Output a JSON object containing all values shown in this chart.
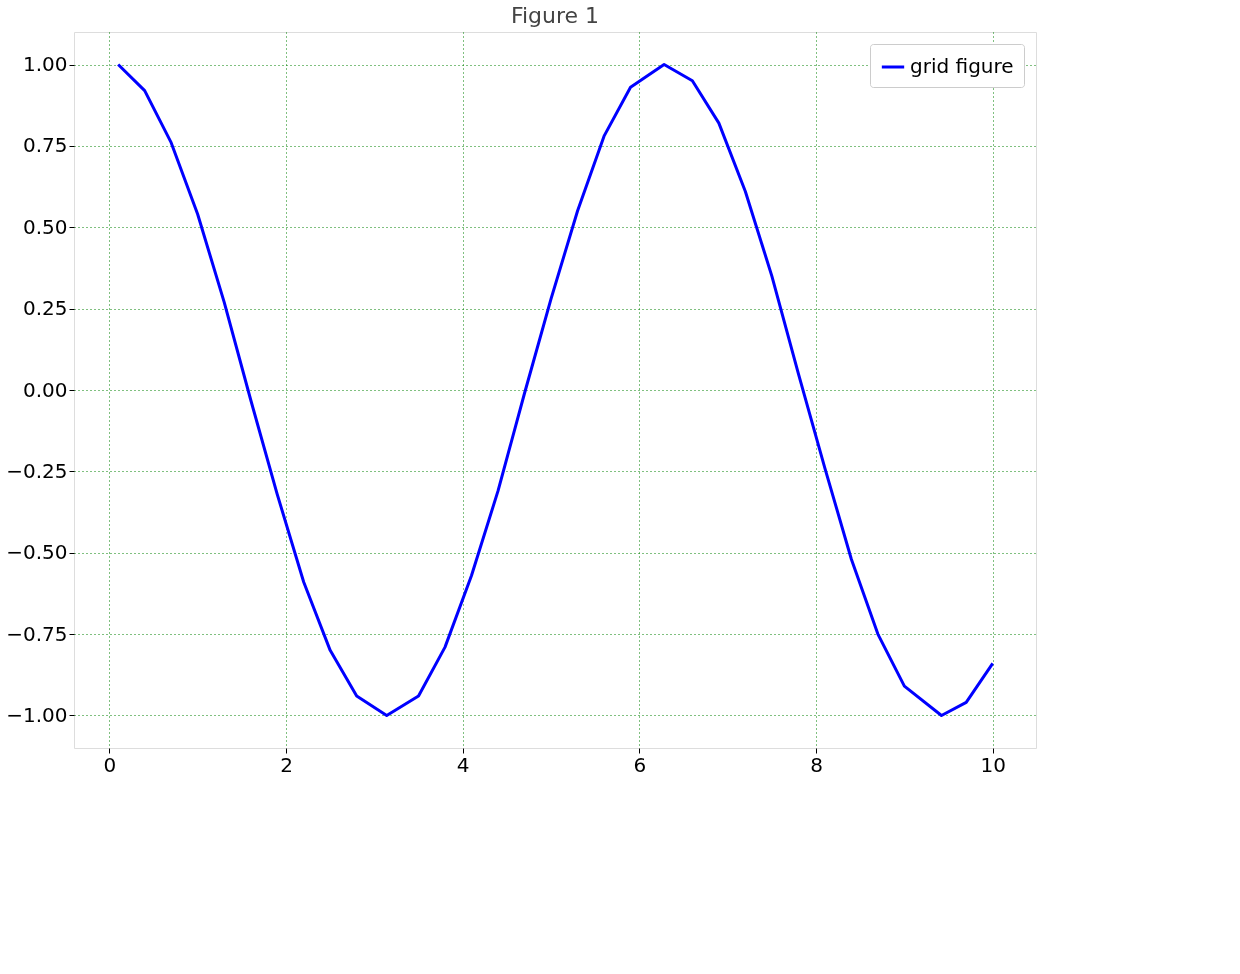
{
  "chart_data": {
    "type": "line",
    "title": "Figure 1",
    "x": [
      0.1,
      0.4,
      0.7,
      1.0,
      1.3,
      1.6,
      1.9,
      2.2,
      2.5,
      2.8,
      3.14,
      3.5,
      3.8,
      4.1,
      4.4,
      4.7,
      5.0,
      5.3,
      5.6,
      5.9,
      6.28,
      6.6,
      6.9,
      7.2,
      7.5,
      7.8,
      8.1,
      8.4,
      8.7,
      9.0,
      9.42,
      9.7,
      10.0
    ],
    "series": [
      {
        "name": "grid figure",
        "color": "#0000ff",
        "values": [
          1.0,
          0.92,
          0.76,
          0.54,
          0.27,
          -0.03,
          -0.32,
          -0.59,
          -0.8,
          -0.94,
          -1.0,
          -0.94,
          -0.79,
          -0.57,
          -0.31,
          -0.01,
          0.28,
          0.55,
          0.78,
          0.93,
          1.0,
          0.95,
          0.82,
          0.61,
          0.35,
          0.05,
          -0.24,
          -0.52,
          -0.75,
          -0.91,
          -1.0,
          -0.96,
          -0.84
        ]
      }
    ],
    "xlim": [
      -0.4,
      10.49
    ],
    "ylim": [
      -1.1,
      1.1
    ],
    "xticks": [
      0,
      2,
      4,
      6,
      8,
      10
    ],
    "yticks": [
      {
        "value": -1,
        "label": "−1.00"
      },
      {
        "value": -0.75,
        "label": "−0.75"
      },
      {
        "value": -0.5,
        "label": "−0.50"
      },
      {
        "value": -0.25,
        "label": "−0.25"
      },
      {
        "value": 0,
        "label": "0.00"
      },
      {
        "value": 0.25,
        "label": "0.25"
      },
      {
        "value": 0.5,
        "label": "0.50"
      },
      {
        "value": 0.75,
        "label": "0.75"
      },
      {
        "value": 1,
        "label": "1.00"
      }
    ],
    "grid": true,
    "legend": "top right",
    "line_style": "solid",
    "marker": "none"
  }
}
